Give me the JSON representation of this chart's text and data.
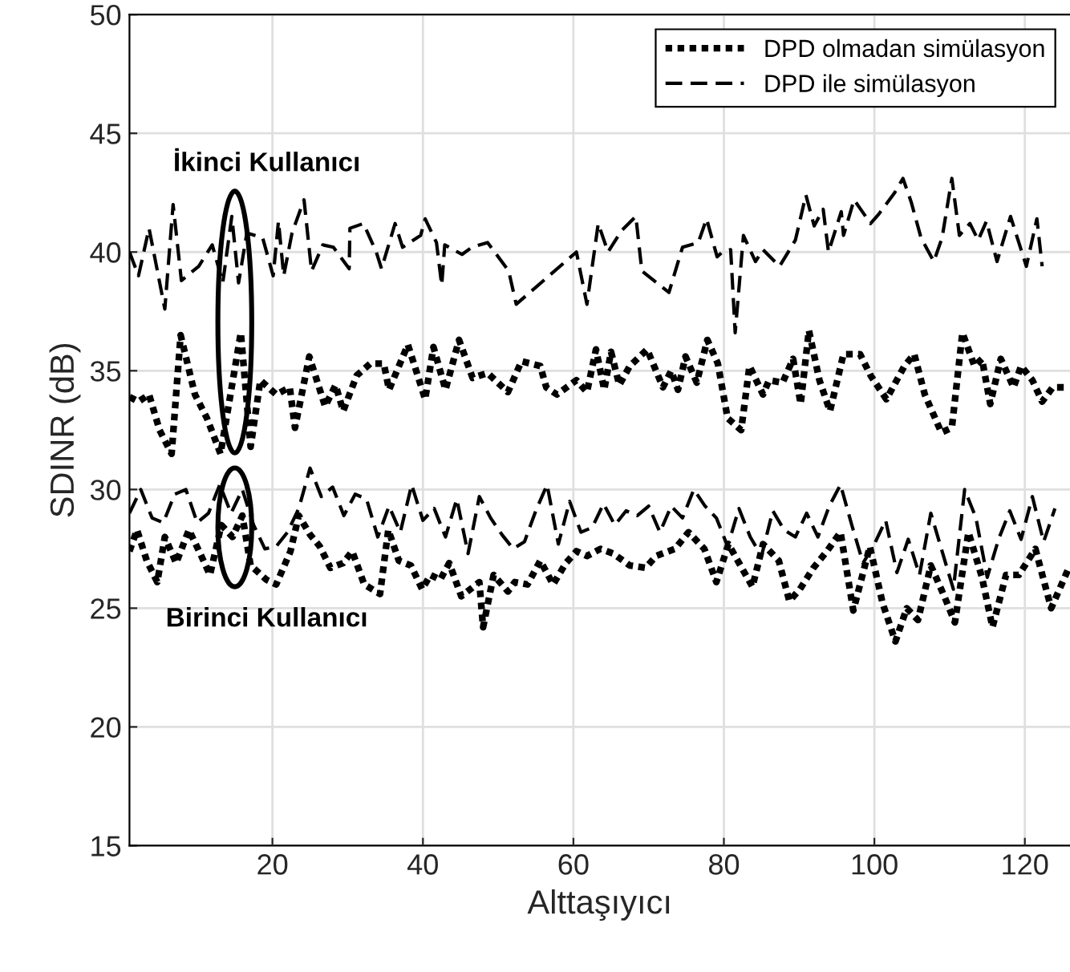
{
  "chart_data": {
    "type": "line",
    "xlabel": "Alttaşıyıcı",
    "ylabel": "SDINR (dB)",
    "xlim": [
      1,
      126
    ],
    "xticks": [
      20,
      40,
      60,
      80,
      100,
      120
    ],
    "ylim": [
      15,
      50
    ],
    "yticks": [
      15,
      20,
      25,
      30,
      35,
      40,
      45,
      50
    ],
    "grid": true,
    "legend": "top right",
    "marker": "none",
    "series": [
      {
        "name": "DPD olmadan simülasyon",
        "color": "#000000",
        "line_style": "dotted",
        "x": [
          1,
          2.2,
          3.6,
          5,
          6.6,
          7.8,
          9.7,
          11.3,
          13.1,
          15.8,
          17.1,
          18.4,
          20.5,
          22.3,
          23,
          24.9,
          27,
          28.4,
          29.4,
          31.2,
          33,
          34.8,
          35.5,
          38,
          40.3,
          41.4,
          43,
          44.8,
          46.6,
          48.6,
          51.3,
          53.1,
          55.6,
          56.4,
          57.8,
          60.4,
          61.8,
          63,
          64.1,
          65,
          66.1,
          67.5,
          69.8,
          71.9,
          73,
          73.9,
          74.9,
          76.4,
          77.8,
          79.2,
          80.5,
          82.3,
          83.4,
          85.2,
          86,
          87.8,
          89.2,
          90.2,
          91.3,
          92.7,
          94.1,
          95.9,
          98.1,
          99.5,
          101.6,
          104,
          105.3,
          106.7,
          108.9,
          110.3,
          111.7,
          113.3,
          114.3,
          115.4,
          116.8,
          118.5,
          119.5,
          121,
          122.3,
          123.7,
          125.7
        ],
        "values": [
          33.9,
          33.7,
          34,
          32.5,
          31.5,
          36.5,
          34,
          33,
          31.5,
          36.6,
          31.8,
          34.6,
          34,
          34.3,
          32.6,
          35.6,
          33.5,
          34.4,
          33.3,
          34.8,
          35.3,
          35.3,
          34.2,
          36.1,
          33.8,
          36,
          34.2,
          36.3,
          34.7,
          34.9,
          34.1,
          35.4,
          35.2,
          34.3,
          34,
          34.6,
          34.1,
          35.9,
          34.2,
          35.8,
          34.4,
          35.2,
          35.9,
          34.3,
          35,
          34.2,
          35.6,
          34.5,
          36.3,
          35.3,
          33,
          32.5,
          35.2,
          34,
          34.6,
          34.5,
          35.5,
          33.6,
          36.7,
          34.6,
          33.3,
          35.7,
          35.7,
          34.8,
          33.8,
          35.2,
          35.7,
          34,
          32.4,
          32.6,
          36.6,
          35.2,
          35.5,
          33.6,
          35.5,
          34.3,
          35.2,
          34.6,
          33.7,
          34.3,
          34.3
        ]
      },
      {
        "name": "DPD ile simülasyon",
        "color": "#000000",
        "line_style": "dashed",
        "x": [
          1,
          2.2,
          3.6,
          5.7,
          6.8,
          7.9,
          10.2,
          12,
          13.4,
          14.6,
          15.5,
          16.6,
          18.7,
          20.1,
          20.8,
          21.5,
          22.6,
          24.2,
          25.2,
          26.7,
          28.1,
          30.2,
          30.3,
          32.1,
          33.8,
          34.5,
          36.3,
          37.3,
          39.7,
          40.3,
          41.8,
          42.5,
          42.9,
          45.2,
          46.5,
          48.6,
          51.4,
          52.4,
          60.4,
          61.8,
          63.3,
          64.6,
          66.4,
          68.3,
          69.1,
          72.7,
          74.5,
          76.6,
          77.7,
          79.1,
          79.8,
          80.9,
          81.5,
          82.6,
          84.2,
          85.2,
          87.4,
          89.5,
          90.9,
          92,
          93.2,
          93.9,
          95.6,
          95.9,
          97.3,
          99.5,
          100.6,
          102.7,
          103.8,
          104.9,
          106.2,
          107.9,
          109,
          110.3,
          111.3,
          112.7,
          113.8,
          114.9,
          116.3,
          118.1,
          120.2,
          121.6,
          122.3
        ],
        "values": [
          40,
          39,
          41,
          37.6,
          42,
          38.8,
          39.4,
          40.3,
          38.7,
          41.5,
          38.7,
          40.8,
          40.6,
          39,
          41.3,
          39,
          40.8,
          42.2,
          39.2,
          40.3,
          40.2,
          39.3,
          41,
          41.2,
          40,
          39.3,
          41.2,
          40.2,
          40.7,
          41.4,
          40.4,
          38.6,
          40.3,
          39.9,
          40.2,
          40.4,
          39.2,
          37.8,
          40,
          37.8,
          41.2,
          40,
          40.9,
          41.5,
          39.2,
          38.3,
          40.2,
          40.4,
          41.4,
          39.8,
          40,
          40.1,
          36.6,
          40.7,
          39.6,
          40.1,
          39.4,
          40.5,
          42.4,
          41.1,
          41.8,
          40,
          41.7,
          40.7,
          42.2,
          41.2,
          41.6,
          42.5,
          43.1,
          42.1,
          40.6,
          39.6,
          40.6,
          43.1,
          40.7,
          41.2,
          40.5,
          41.3,
          39.6,
          41.5,
          39.4,
          41.4,
          39.4
        ]
      },
      {
        "color": "#000000",
        "line_style": "dotted",
        "x": [
          1,
          2,
          3.3,
          4.7,
          5.7,
          7.2,
          8.9,
          10.4,
          11.7,
          13.2,
          14.7,
          16,
          17.1,
          19.2,
          20.5,
          22.4,
          23.5,
          25,
          26.3,
          27.7,
          29.4,
          30.6,
          32.2,
          34.3,
          35.4,
          36.8,
          38.4,
          39.9,
          41,
          42.3,
          43.5,
          45.1,
          47.5,
          48,
          49.4,
          51.3,
          52.2,
          53.9,
          55.6,
          57.3,
          59,
          60.4,
          61.8,
          63.6,
          65.3,
          67.5,
          69.6,
          71,
          73.5,
          75.3,
          77.4,
          79,
          80.6,
          83.8,
          85.2,
          87.3,
          88.7,
          90.1,
          91.9,
          93.7,
          95.5,
          97.2,
          99.4,
          101.1,
          102.8,
          104.3,
          105.8,
          107.5,
          109.3,
          110.7,
          112.5,
          114.3,
          115.7,
          117.5,
          119.2,
          121.4,
          123.5,
          125.7
        ],
        "values": [
          27.4,
          28.3,
          27,
          26.1,
          28,
          26.9,
          28.3,
          27.3,
          26.4,
          28.5,
          28,
          28.9,
          26.8,
          26.2,
          26,
          27.4,
          28.9,
          28.1,
          27.6,
          26.7,
          26.9,
          27.4,
          26,
          25.6,
          28.3,
          27,
          26.8,
          25.8,
          26.4,
          26.2,
          26.9,
          25.5,
          26.1,
          24.2,
          26.4,
          25.7,
          26.1,
          26,
          27,
          26,
          26.9,
          27.4,
          27.2,
          27.5,
          27.3,
          26.8,
          26.7,
          27.2,
          27.5,
          28.2,
          27.5,
          26.1,
          27.7,
          25.9,
          27.7,
          27,
          25.3,
          25.8,
          26.7,
          27.4,
          28.2,
          24.9,
          27.6,
          25.2,
          23.6,
          25,
          24.5,
          26.8,
          25.5,
          24.4,
          28.2,
          26.3,
          24.2,
          26.4,
          26.4,
          27.5,
          25,
          26.6
        ]
      },
      {
        "color": "#000000",
        "line_style": "dashed",
        "x": [
          1,
          2.5,
          4,
          5.5,
          7,
          8.5,
          10,
          11.5,
          13,
          14.5,
          16,
          17.5,
          19,
          20.5,
          22,
          23.5,
          25,
          26.5,
          28,
          29.5,
          31,
          32.5,
          34,
          35.5,
          37,
          38.5,
          40,
          41.5,
          43,
          44.5,
          46,
          47.5,
          49,
          50.5,
          52,
          53.5,
          55,
          56.5,
          58,
          59.5,
          61,
          62.5,
          64,
          65.5,
          67,
          68.5,
          70,
          71.5,
          73,
          74.5,
          76,
          77.5,
          79,
          80.5,
          82,
          83.5,
          85,
          86.5,
          88,
          89.5,
          91,
          92.5,
          94,
          95.5,
          97,
          98.5,
          100,
          101.5,
          103,
          104.5,
          106,
          107.5,
          109,
          110.5,
          112,
          113.5,
          115,
          116.5,
          118,
          119.5,
          121,
          122.5,
          124
        ],
        "values": [
          29,
          30,
          28.8,
          28.6,
          29.8,
          30,
          28.6,
          29,
          30.2,
          29,
          30,
          28.5,
          27.5,
          27.6,
          28.2,
          29.2,
          30.9,
          29.7,
          30.1,
          28.9,
          29.8,
          29.6,
          28,
          29.3,
          28.2,
          30.2,
          28.7,
          29.2,
          28,
          29.6,
          27.3,
          29.7,
          28.8,
          28.1,
          27.5,
          27.8,
          29.1,
          30.2,
          27.7,
          29.5,
          28.2,
          28.4,
          29.4,
          28.5,
          29.1,
          28.9,
          29.3,
          28.2,
          29.3,
          28.8,
          30,
          29.3,
          28.8,
          27.6,
          29.2,
          28,
          27.2,
          29.1,
          28.3,
          28,
          29,
          28,
          29.3,
          30.2,
          28.5,
          26.9,
          27.7,
          28.7,
          26.5,
          27.9,
          26.4,
          29,
          27.4,
          25.8,
          30,
          28.8,
          26.3,
          27.9,
          29.1,
          27.9,
          29.7,
          27.8,
          29.2
        ]
      }
    ],
    "annotations": [
      "İkinci Kullanıcı",
      "Birinci Kullanıcı"
    ]
  }
}
